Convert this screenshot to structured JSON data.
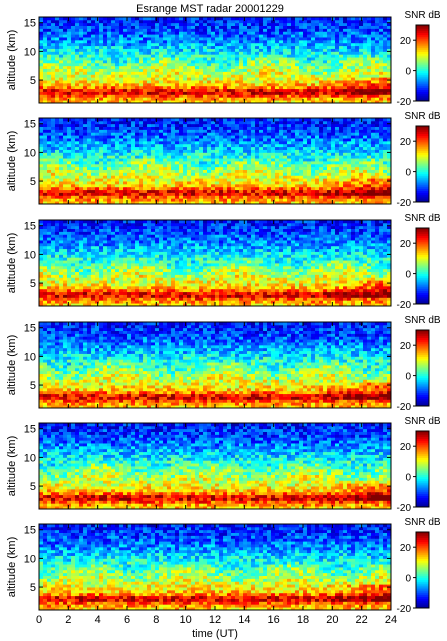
{
  "figure": {
    "title": "Esrange MST radar 20001229",
    "xlabel": "time (UT)"
  },
  "chart_data": {
    "type": "heatmap",
    "title": "Esrange MST radar 20001229",
    "panel_count": 6,
    "x": {
      "label": "time (UT)",
      "range": [
        0,
        24
      ],
      "ticks": [
        0,
        2,
        4,
        6,
        8,
        10,
        12,
        14,
        16,
        18,
        20,
        22,
        24
      ]
    },
    "y": {
      "label": "altitude (km)",
      "range": [
        1,
        16
      ],
      "ticks": [
        5,
        10,
        15
      ]
    },
    "colorbar": {
      "label": "SNR dB",
      "range": [
        -20,
        30
      ],
      "ticks": [
        -20,
        0,
        20
      ],
      "colormap": "jet",
      "colors": [
        "#00008f",
        "#0000ff",
        "#0080ff",
        "#00ffff",
        "#80ff80",
        "#ffff00",
        "#ff8000",
        "#ff0000",
        "#800000"
      ]
    },
    "field_description_mean_snr_db_by_altitude_km": [
      [
        1.5,
        14
      ],
      [
        2.5,
        22
      ],
      [
        3.0,
        27
      ],
      [
        3.5,
        21
      ],
      [
        4.0,
        15
      ],
      [
        5.0,
        11
      ],
      [
        6.0,
        9
      ],
      [
        8.0,
        4
      ],
      [
        10.0,
        -2
      ],
      [
        12.0,
        -7
      ],
      [
        14.0,
        -11
      ],
      [
        16.0,
        -13
      ]
    ]
  }
}
